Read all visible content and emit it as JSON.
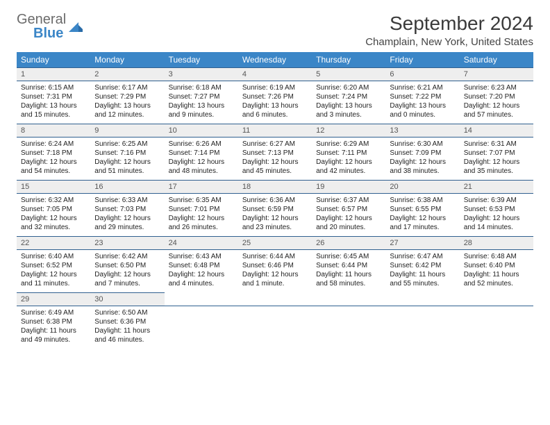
{
  "logo": {
    "text1": "General",
    "text2": "Blue"
  },
  "title": "September 2024",
  "location": "Champlain, New York, United States",
  "header_bg": "#3b86c7",
  "header_fg": "#ffffff",
  "daynum_bg": "#eeeeee",
  "rule_color": "#2f5f8f",
  "day_headers": [
    "Sunday",
    "Monday",
    "Tuesday",
    "Wednesday",
    "Thursday",
    "Friday",
    "Saturday"
  ],
  "weeks": [
    [
      {
        "n": "1",
        "sr": "Sunrise: 6:15 AM",
        "ss": "Sunset: 7:31 PM",
        "d1": "Daylight: 13 hours",
        "d2": "and 15 minutes."
      },
      {
        "n": "2",
        "sr": "Sunrise: 6:17 AM",
        "ss": "Sunset: 7:29 PM",
        "d1": "Daylight: 13 hours",
        "d2": "and 12 minutes."
      },
      {
        "n": "3",
        "sr": "Sunrise: 6:18 AM",
        "ss": "Sunset: 7:27 PM",
        "d1": "Daylight: 13 hours",
        "d2": "and 9 minutes."
      },
      {
        "n": "4",
        "sr": "Sunrise: 6:19 AM",
        "ss": "Sunset: 7:26 PM",
        "d1": "Daylight: 13 hours",
        "d2": "and 6 minutes."
      },
      {
        "n": "5",
        "sr": "Sunrise: 6:20 AM",
        "ss": "Sunset: 7:24 PM",
        "d1": "Daylight: 13 hours",
        "d2": "and 3 minutes."
      },
      {
        "n": "6",
        "sr": "Sunrise: 6:21 AM",
        "ss": "Sunset: 7:22 PM",
        "d1": "Daylight: 13 hours",
        "d2": "and 0 minutes."
      },
      {
        "n": "7",
        "sr": "Sunrise: 6:23 AM",
        "ss": "Sunset: 7:20 PM",
        "d1": "Daylight: 12 hours",
        "d2": "and 57 minutes."
      }
    ],
    [
      {
        "n": "8",
        "sr": "Sunrise: 6:24 AM",
        "ss": "Sunset: 7:18 PM",
        "d1": "Daylight: 12 hours",
        "d2": "and 54 minutes."
      },
      {
        "n": "9",
        "sr": "Sunrise: 6:25 AM",
        "ss": "Sunset: 7:16 PM",
        "d1": "Daylight: 12 hours",
        "d2": "and 51 minutes."
      },
      {
        "n": "10",
        "sr": "Sunrise: 6:26 AM",
        "ss": "Sunset: 7:14 PM",
        "d1": "Daylight: 12 hours",
        "d2": "and 48 minutes."
      },
      {
        "n": "11",
        "sr": "Sunrise: 6:27 AM",
        "ss": "Sunset: 7:13 PM",
        "d1": "Daylight: 12 hours",
        "d2": "and 45 minutes."
      },
      {
        "n": "12",
        "sr": "Sunrise: 6:29 AM",
        "ss": "Sunset: 7:11 PM",
        "d1": "Daylight: 12 hours",
        "d2": "and 42 minutes."
      },
      {
        "n": "13",
        "sr": "Sunrise: 6:30 AM",
        "ss": "Sunset: 7:09 PM",
        "d1": "Daylight: 12 hours",
        "d2": "and 38 minutes."
      },
      {
        "n": "14",
        "sr": "Sunrise: 6:31 AM",
        "ss": "Sunset: 7:07 PM",
        "d1": "Daylight: 12 hours",
        "d2": "and 35 minutes."
      }
    ],
    [
      {
        "n": "15",
        "sr": "Sunrise: 6:32 AM",
        "ss": "Sunset: 7:05 PM",
        "d1": "Daylight: 12 hours",
        "d2": "and 32 minutes."
      },
      {
        "n": "16",
        "sr": "Sunrise: 6:33 AM",
        "ss": "Sunset: 7:03 PM",
        "d1": "Daylight: 12 hours",
        "d2": "and 29 minutes."
      },
      {
        "n": "17",
        "sr": "Sunrise: 6:35 AM",
        "ss": "Sunset: 7:01 PM",
        "d1": "Daylight: 12 hours",
        "d2": "and 26 minutes."
      },
      {
        "n": "18",
        "sr": "Sunrise: 6:36 AM",
        "ss": "Sunset: 6:59 PM",
        "d1": "Daylight: 12 hours",
        "d2": "and 23 minutes."
      },
      {
        "n": "19",
        "sr": "Sunrise: 6:37 AM",
        "ss": "Sunset: 6:57 PM",
        "d1": "Daylight: 12 hours",
        "d2": "and 20 minutes."
      },
      {
        "n": "20",
        "sr": "Sunrise: 6:38 AM",
        "ss": "Sunset: 6:55 PM",
        "d1": "Daylight: 12 hours",
        "d2": "and 17 minutes."
      },
      {
        "n": "21",
        "sr": "Sunrise: 6:39 AM",
        "ss": "Sunset: 6:53 PM",
        "d1": "Daylight: 12 hours",
        "d2": "and 14 minutes."
      }
    ],
    [
      {
        "n": "22",
        "sr": "Sunrise: 6:40 AM",
        "ss": "Sunset: 6:52 PM",
        "d1": "Daylight: 12 hours",
        "d2": "and 11 minutes."
      },
      {
        "n": "23",
        "sr": "Sunrise: 6:42 AM",
        "ss": "Sunset: 6:50 PM",
        "d1": "Daylight: 12 hours",
        "d2": "and 7 minutes."
      },
      {
        "n": "24",
        "sr": "Sunrise: 6:43 AM",
        "ss": "Sunset: 6:48 PM",
        "d1": "Daylight: 12 hours",
        "d2": "and 4 minutes."
      },
      {
        "n": "25",
        "sr": "Sunrise: 6:44 AM",
        "ss": "Sunset: 6:46 PM",
        "d1": "Daylight: 12 hours",
        "d2": "and 1 minute."
      },
      {
        "n": "26",
        "sr": "Sunrise: 6:45 AM",
        "ss": "Sunset: 6:44 PM",
        "d1": "Daylight: 11 hours",
        "d2": "and 58 minutes."
      },
      {
        "n": "27",
        "sr": "Sunrise: 6:47 AM",
        "ss": "Sunset: 6:42 PM",
        "d1": "Daylight: 11 hours",
        "d2": "and 55 minutes."
      },
      {
        "n": "28",
        "sr": "Sunrise: 6:48 AM",
        "ss": "Sunset: 6:40 PM",
        "d1": "Daylight: 11 hours",
        "d2": "and 52 minutes."
      }
    ],
    [
      {
        "n": "29",
        "sr": "Sunrise: 6:49 AM",
        "ss": "Sunset: 6:38 PM",
        "d1": "Daylight: 11 hours",
        "d2": "and 49 minutes."
      },
      {
        "n": "30",
        "sr": "Sunrise: 6:50 AM",
        "ss": "Sunset: 6:36 PM",
        "d1": "Daylight: 11 hours",
        "d2": "and 46 minutes."
      },
      null,
      null,
      null,
      null,
      null
    ]
  ]
}
